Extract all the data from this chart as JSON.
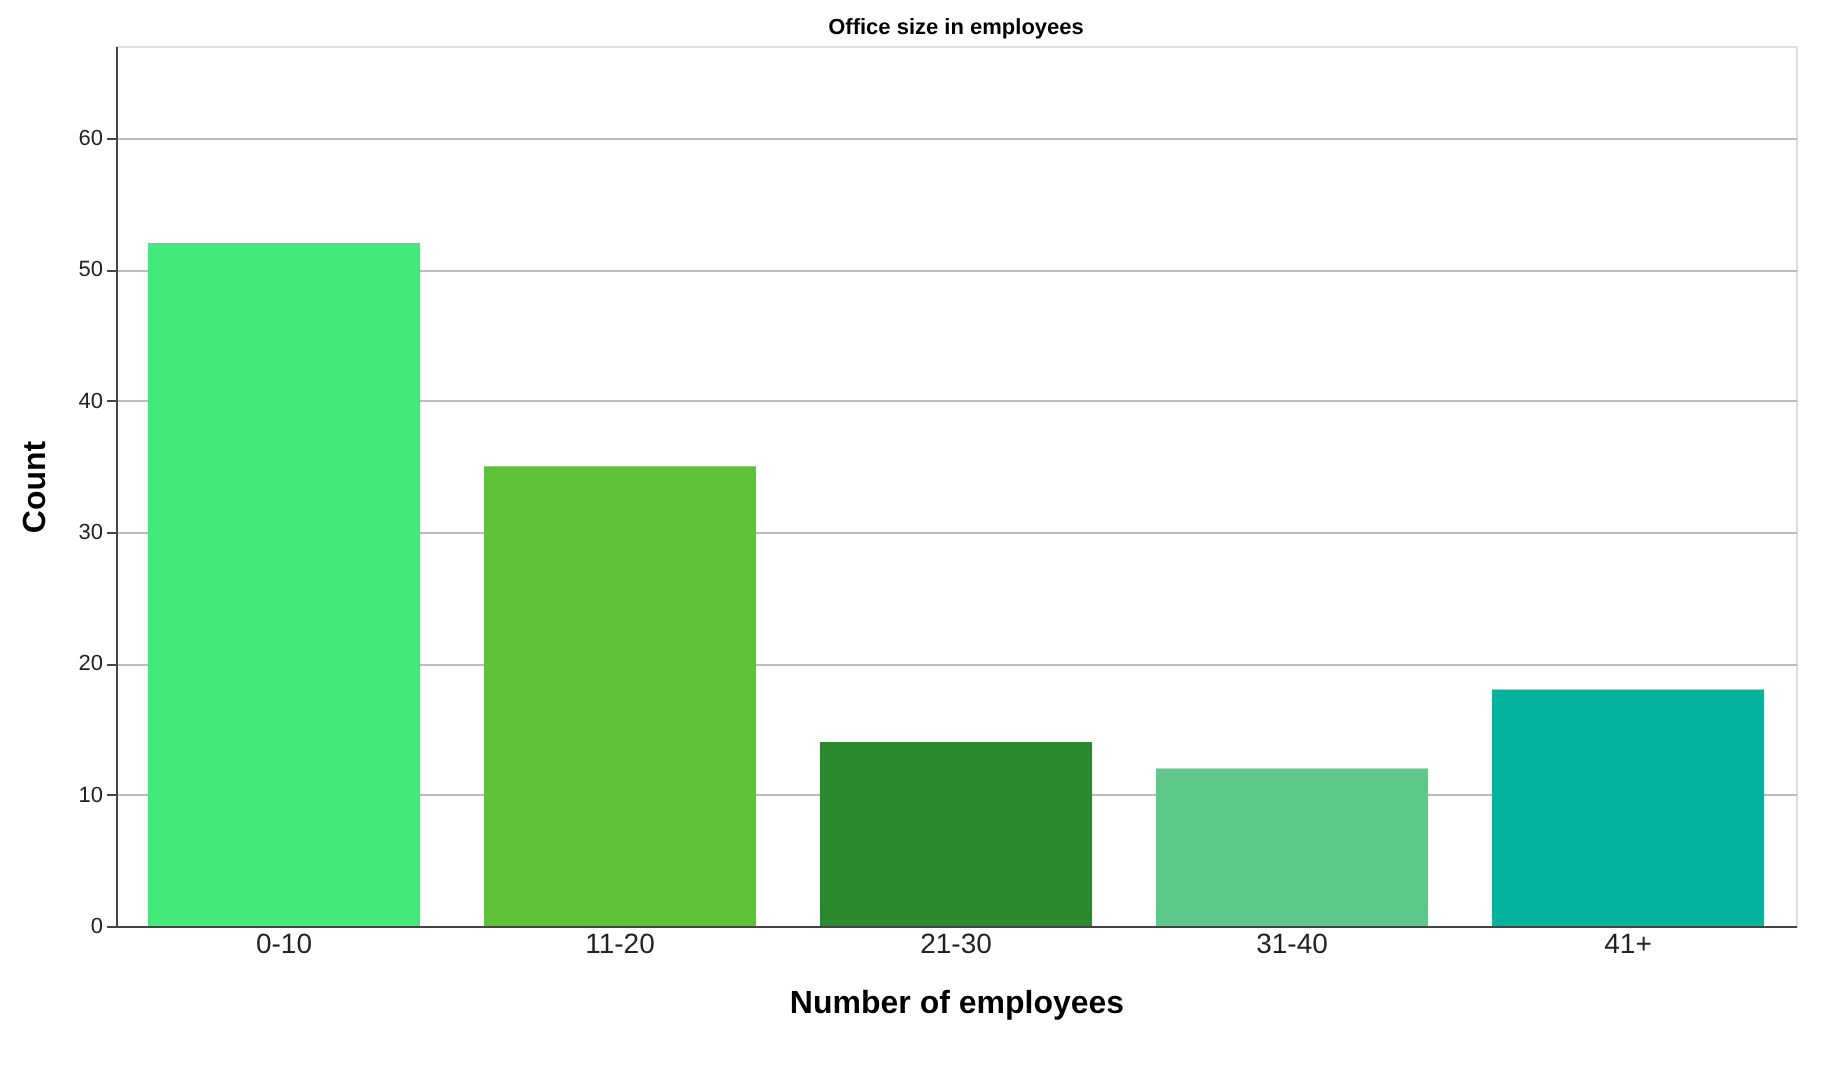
{
  "chart_data": {
    "type": "bar",
    "title": "Office size in employees",
    "xlabel": "Number of employees",
    "ylabel": "Count",
    "categories": [
      "0-10",
      "11-20",
      "21-30",
      "31-40",
      "41+"
    ],
    "values": [
      52,
      35,
      14,
      12,
      18
    ],
    "colors": [
      "#43e97b",
      "#5dc238",
      "#2a8a2d",
      "#5ec98b",
      "#03b39e"
    ],
    "ylim": [
      0,
      67
    ],
    "yticks": [
      0,
      10,
      20,
      30,
      40,
      50,
      60
    ],
    "grid": "y"
  }
}
